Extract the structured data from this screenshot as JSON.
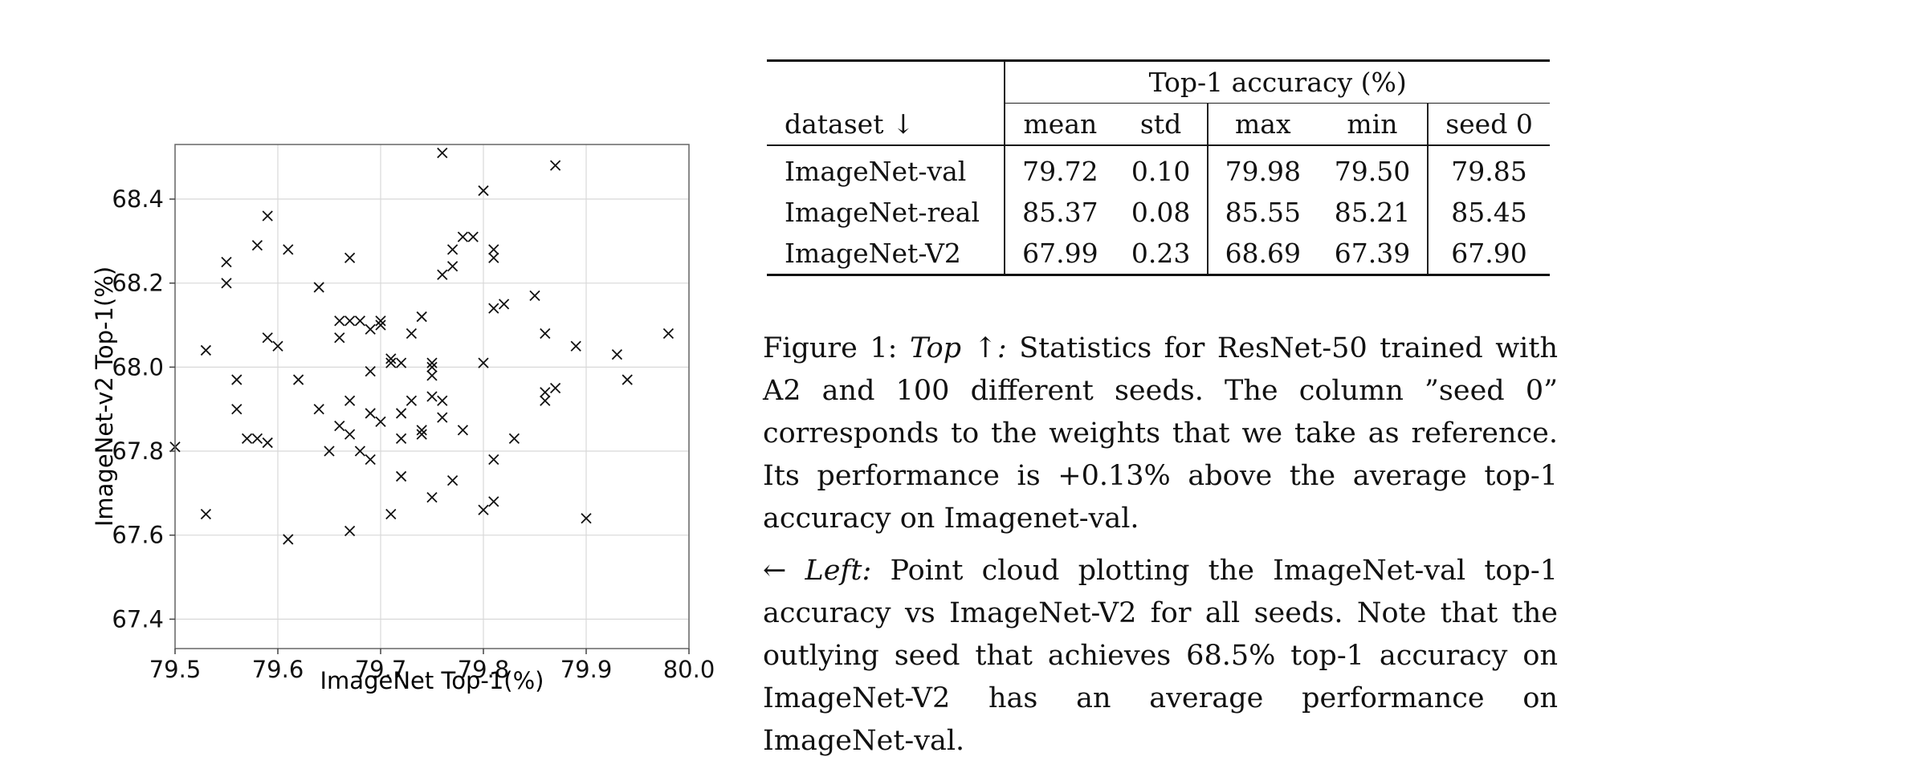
{
  "chart_data": {
    "type": "scatter",
    "xlabel": "ImageNet Top-1(%)",
    "ylabel": "ImageNet-v2 Top-1(%)",
    "xlim": [
      79.5,
      80.0
    ],
    "ylim": [
      67.33,
      68.53
    ],
    "xticks": [
      "79.5",
      "79.6",
      "79.7",
      "79.8",
      "79.9",
      "80.0"
    ],
    "yticks": [
      "67.4",
      "67.6",
      "67.8",
      "68.0",
      "68.2",
      "68.4"
    ],
    "grid": true,
    "marker": "x",
    "points": [
      [
        79.5,
        67.81
      ],
      [
        79.53,
        67.65
      ],
      [
        79.53,
        68.04
      ],
      [
        79.55,
        68.25
      ],
      [
        79.55,
        68.2
      ],
      [
        79.56,
        67.97
      ],
      [
        79.56,
        67.9
      ],
      [
        79.57,
        67.83
      ],
      [
        79.58,
        67.83
      ],
      [
        79.58,
        68.29
      ],
      [
        79.59,
        68.36
      ],
      [
        79.59,
        68.07
      ],
      [
        79.59,
        67.82
      ],
      [
        79.6,
        68.05
      ],
      [
        79.61,
        68.28
      ],
      [
        79.61,
        67.59
      ],
      [
        79.62,
        67.97
      ],
      [
        79.64,
        68.19
      ],
      [
        79.64,
        67.9
      ],
      [
        79.65,
        67.8
      ],
      [
        79.66,
        68.07
      ],
      [
        79.66,
        67.86
      ],
      [
        79.66,
        68.11
      ],
      [
        79.67,
        68.11
      ],
      [
        79.67,
        68.26
      ],
      [
        79.67,
        67.92
      ],
      [
        79.67,
        67.84
      ],
      [
        79.67,
        67.61
      ],
      [
        79.68,
        68.11
      ],
      [
        79.68,
        67.8
      ],
      [
        79.69,
        67.99
      ],
      [
        79.69,
        67.89
      ],
      [
        79.69,
        67.78
      ],
      [
        79.69,
        68.09
      ],
      [
        79.7,
        68.1
      ],
      [
        79.7,
        67.87
      ],
      [
        79.7,
        68.11
      ],
      [
        79.71,
        68.02
      ],
      [
        79.71,
        68.01
      ],
      [
        79.71,
        67.65
      ],
      [
        79.72,
        68.01
      ],
      [
        79.72,
        67.89
      ],
      [
        79.72,
        67.83
      ],
      [
        79.72,
        67.74
      ],
      [
        79.73,
        68.08
      ],
      [
        79.73,
        67.92
      ],
      [
        79.74,
        68.12
      ],
      [
        79.74,
        67.85
      ],
      [
        79.74,
        67.84
      ],
      [
        79.75,
        68.01
      ],
      [
        79.75,
        67.93
      ],
      [
        79.75,
        68.0
      ],
      [
        79.75,
        67.98
      ],
      [
        79.75,
        67.69
      ],
      [
        79.76,
        68.22
      ],
      [
        79.76,
        67.92
      ],
      [
        79.76,
        67.88
      ],
      [
        79.76,
        68.51
      ],
      [
        79.77,
        68.28
      ],
      [
        79.77,
        68.24
      ],
      [
        79.77,
        67.73
      ],
      [
        79.78,
        68.31
      ],
      [
        79.78,
        67.85
      ],
      [
        79.79,
        68.31
      ],
      [
        79.8,
        68.42
      ],
      [
        79.8,
        68.01
      ],
      [
        79.8,
        67.66
      ],
      [
        79.81,
        68.14
      ],
      [
        79.81,
        68.26
      ],
      [
        79.81,
        68.28
      ],
      [
        79.81,
        67.78
      ],
      [
        79.81,
        67.68
      ],
      [
        79.82,
        68.15
      ],
      [
        79.83,
        67.83
      ],
      [
        79.85,
        68.17
      ],
      [
        79.86,
        68.08
      ],
      [
        79.86,
        67.94
      ],
      [
        79.86,
        67.92
      ],
      [
        79.87,
        67.95
      ],
      [
        79.87,
        68.48
      ],
      [
        79.89,
        68.05
      ],
      [
        79.9,
        67.64
      ],
      [
        79.93,
        68.03
      ],
      [
        79.94,
        67.97
      ],
      [
        79.98,
        68.08
      ]
    ]
  },
  "table": {
    "group_header": "Top-1 accuracy (%)",
    "dataset_header": "dataset ↓",
    "columns": [
      "mean",
      "std",
      "max",
      "min",
      "seed 0"
    ],
    "rows": [
      {
        "dataset": "ImageNet-val",
        "values": [
          "79.72",
          "0.10",
          "79.98",
          "79.50",
          "79.85"
        ]
      },
      {
        "dataset": "ImageNet-real",
        "values": [
          "85.37",
          "0.08",
          "85.55",
          "85.21",
          "85.45"
        ]
      },
      {
        "dataset": "ImageNet-V2",
        "values": [
          "67.99",
          "0.23",
          "68.69",
          "67.39",
          "67.90"
        ]
      }
    ]
  },
  "caption": {
    "fig_label": "Figure 1:",
    "top_label": "Top ↑:",
    "top_text": "Statistics for ResNet-50 trained with A2 and 100 different seeds. The column ”seed 0” corresponds to the weights that we take as reference. Its performance is +0.13% above the average top-1 accuracy on Imagenet-val.",
    "left_label": "← Left:",
    "left_text": "Point cloud plotting the ImageNet-val top-1 accuracy vs ImageNet-V2 for all seeds. Note that the outlying seed that achieves 68.5% top-1 accuracy on ImageNet-V2 has an average performance on ImageNet-val."
  }
}
